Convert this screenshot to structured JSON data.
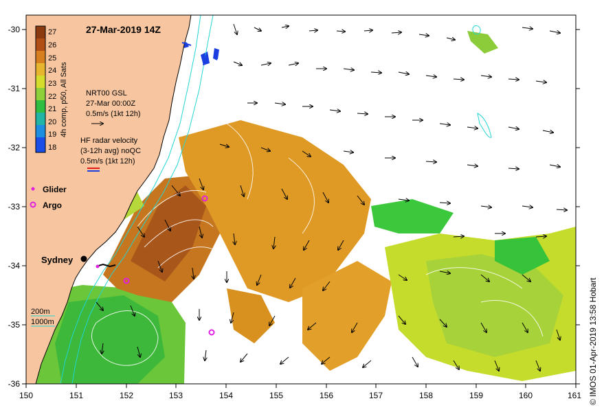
{
  "map": {
    "title": "27-Mar-2019 14Z",
    "x_ticks": [
      "150",
      "151",
      "152",
      "153",
      "154",
      "155",
      "156",
      "157",
      "158",
      "159",
      "160",
      "161"
    ],
    "y_ticks": [
      "-30",
      "-31",
      "-32",
      "-33",
      "-34",
      "-35",
      "-36"
    ],
    "credit": "© IMOS 01-Apr-2019 13:58 Hobart"
  },
  "colorbar": {
    "label": "4h comp, p50, All Sats",
    "ticks": [
      "27",
      "26",
      "25",
      "24",
      "23",
      "22",
      "21",
      "20",
      "19",
      "18"
    ],
    "colors": [
      "#8b3a10",
      "#c2601c",
      "#e0901e",
      "#e8b62e",
      "#d6dc2c",
      "#a8d83a",
      "#3cc83c",
      "#22b4a4",
      "#1e8ee0",
      "#1a4ee6"
    ]
  },
  "legend": {
    "gsl_title": "NRT00 GSL",
    "gsl_time": "27-Mar 00:00Z",
    "gsl_scale": "0.5m/s (1kt 12h)",
    "hf_title": "HF radar velocity",
    "hf_avg": "(3-12h avg) noQC",
    "hf_scale": "0.5m/s (1kt 12h)",
    "glider": "Glider",
    "argo": "Argo",
    "depth_200": "200m",
    "depth_1000": "1000m",
    "colors": {
      "hf_red": "#e01818",
      "hf_blue": "#1a3ee0",
      "glider": "#e020e0",
      "argo": "#e020e0",
      "contour": "#22d4d4"
    }
  },
  "places": {
    "sydney": "Sydney"
  }
}
